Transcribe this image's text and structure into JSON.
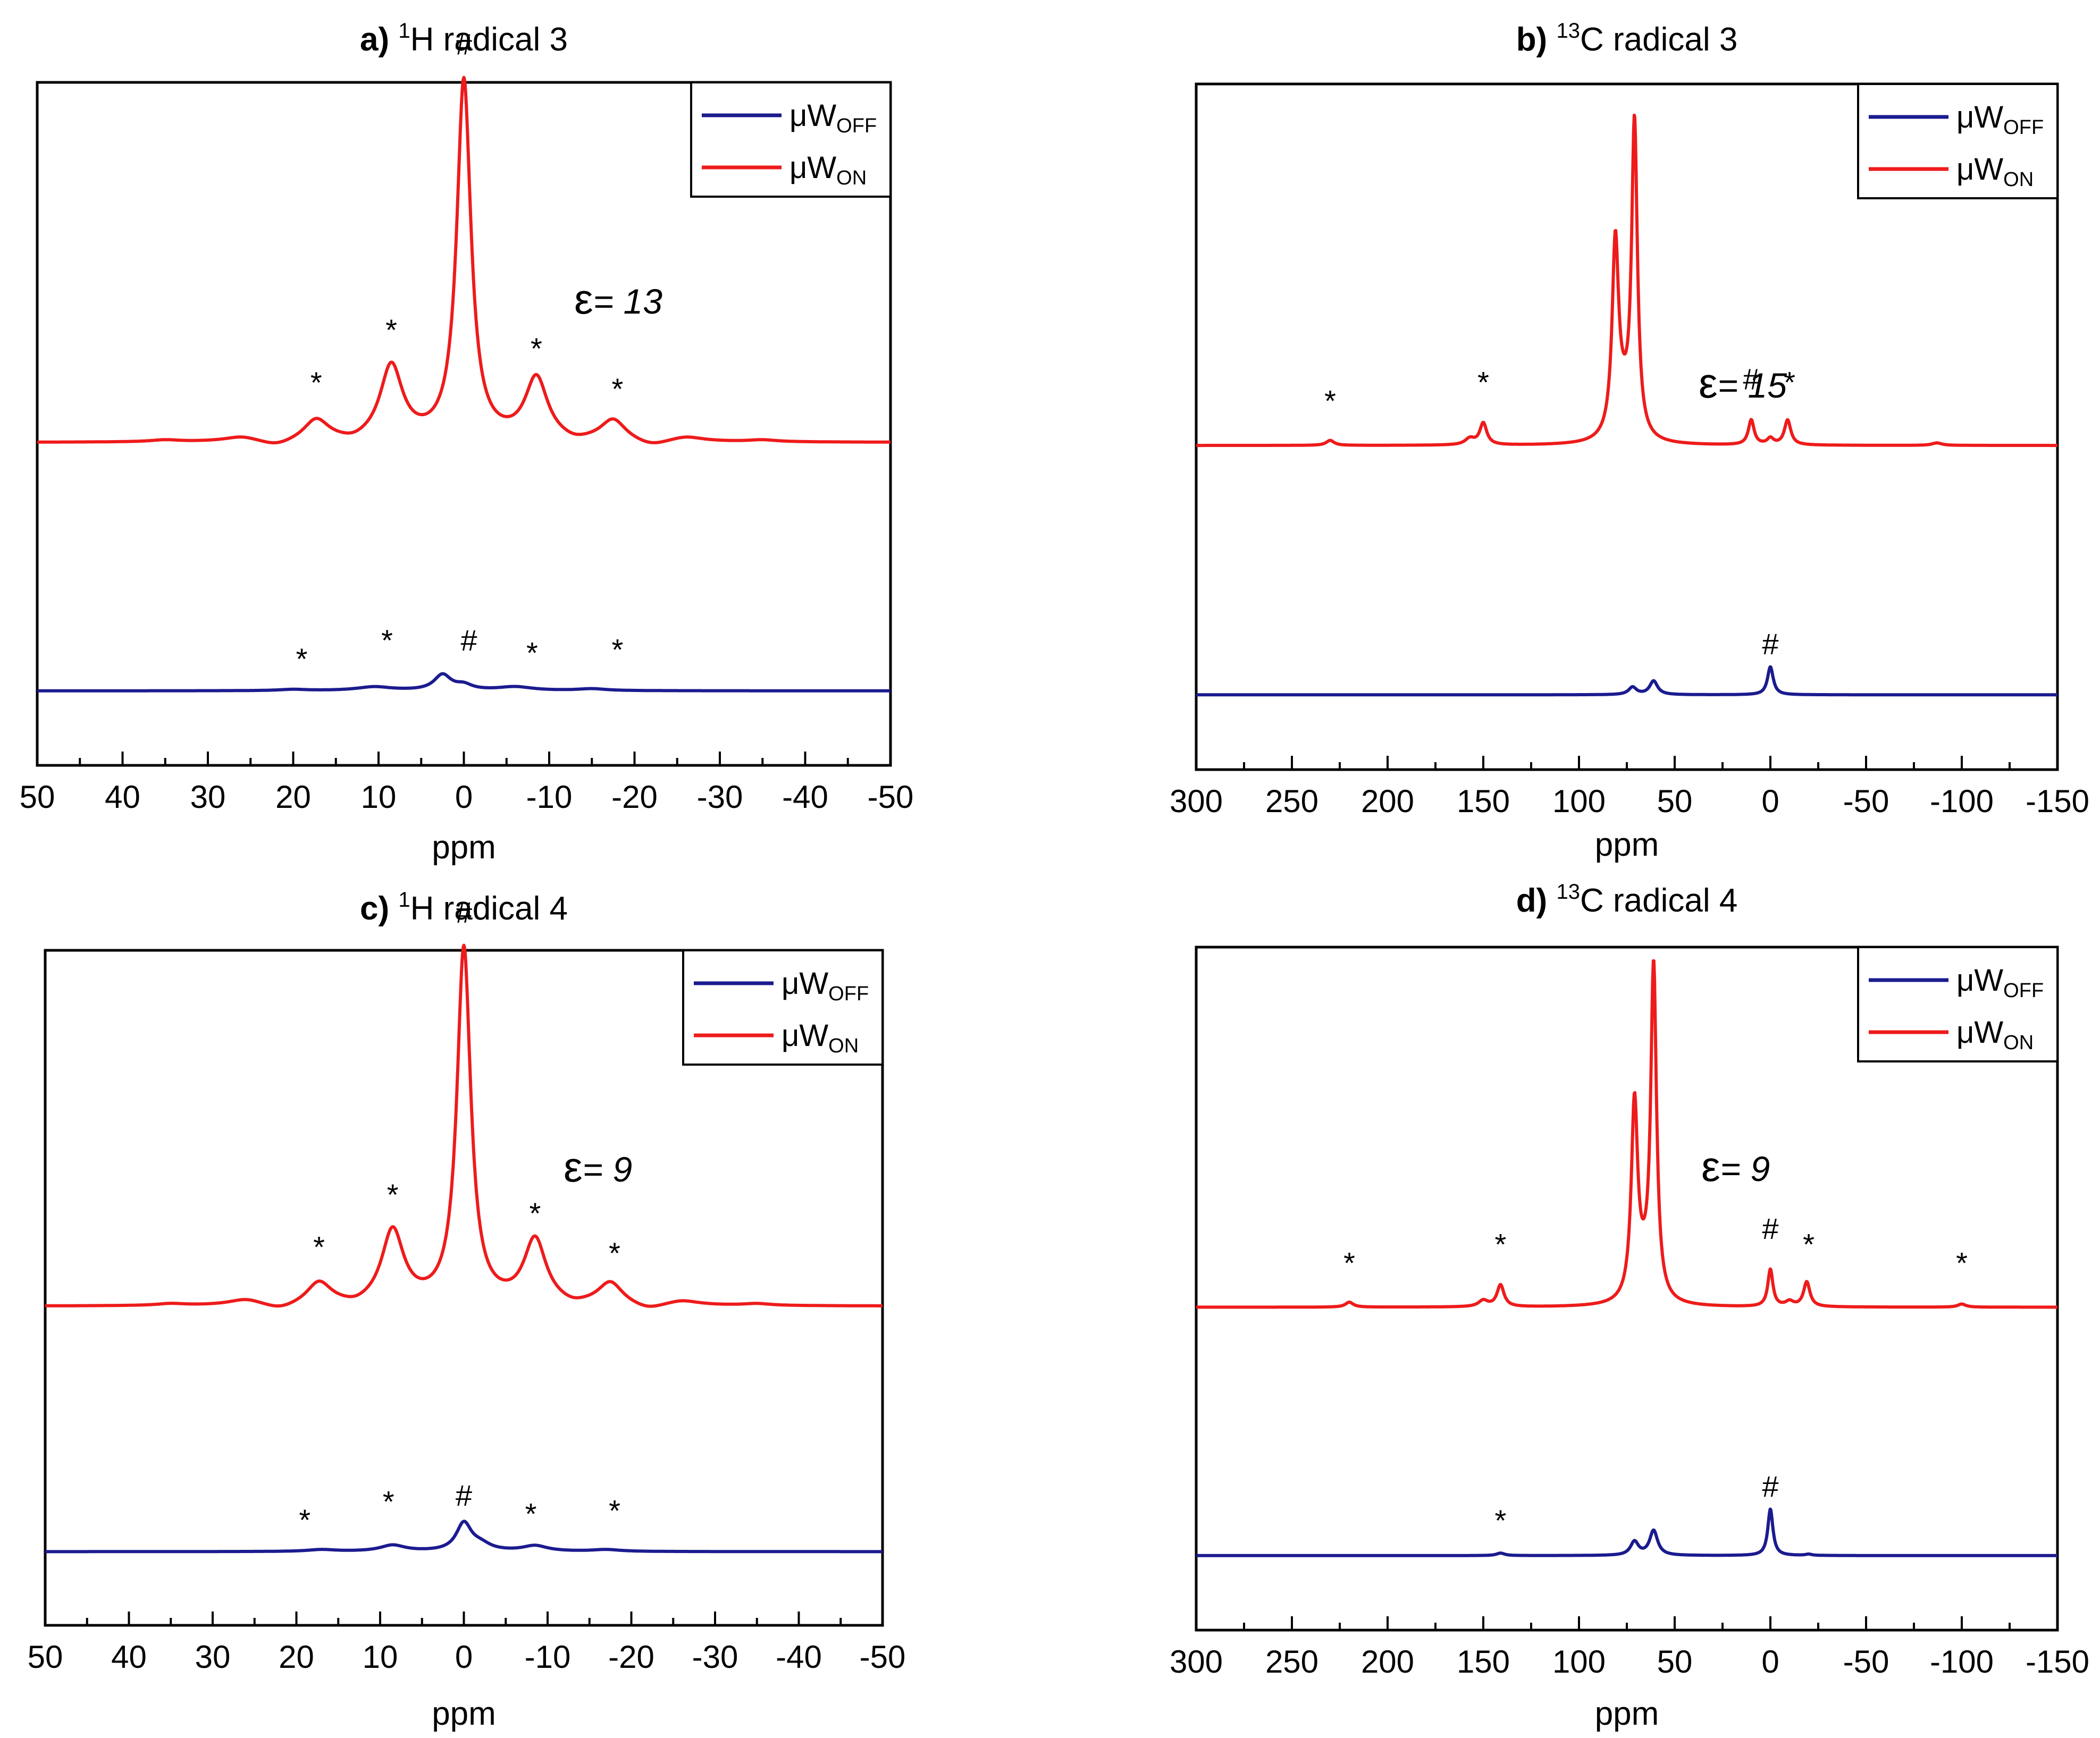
{
  "chart_data": [
    {
      "id": "a",
      "type": "line",
      "title_letter": "a)",
      "title_sup": "1",
      "title_nucleus": "H",
      "title_rest": " radical 3",
      "xlabel": "ppm",
      "ylabel": "",
      "xlim": [
        50,
        -50
      ],
      "xticks": [
        "50",
        "40",
        "30",
        "20",
        "10",
        "0",
        "-10",
        "-20",
        "-30",
        "-40",
        "-50"
      ],
      "xtick_values": [
        50,
        40,
        30,
        20,
        10,
        0,
        -10,
        -20,
        -30,
        -40,
        -50
      ],
      "ylim": [
        -0.1,
        1.0
      ],
      "legend": [
        {
          "name": "μW",
          "sub": "OFF",
          "color": "#1b1b8f"
        },
        {
          "name": "μW",
          "sub": "ON",
          "color": "#ee1b1b"
        }
      ],
      "enhancement_symbol": "ε",
      "enhancement_value": "= 13",
      "series": [
        {
          "name": "μW_ON",
          "color": "#ee1b1b",
          "baseline": 0.42,
          "peaks": [
            [
              0,
              0.58,
              1.0
            ],
            [
              8.5,
              0.12,
              1.6
            ],
            [
              -8.5,
              0.1,
              1.6
            ],
            [
              17.3,
              0.035,
              1.8
            ],
            [
              -17.5,
              0.035,
              1.8
            ],
            [
              26,
              0.008,
              2.5
            ],
            [
              -26,
              0.008,
              2.5
            ],
            [
              35,
              0.003,
              2
            ],
            [
              -35,
              0.003,
              2
            ]
          ],
          "dips": [
            [
              22,
              0.01,
              2.5
            ],
            [
              -22,
              0.01,
              2.5
            ],
            [
              13,
              0.006,
              1.8
            ],
            [
              -13,
              0.006,
              1.8
            ]
          ]
        },
        {
          "name": "μW_OFF",
          "color": "#1b1b8f",
          "baseline": 0.02,
          "peaks": [
            [
              2.5,
              0.025,
              1.2
            ],
            [
              0,
              0.008,
              1.2
            ],
            [
              10.5,
              0.006,
              2.5
            ],
            [
              -6,
              0.006,
              2.5
            ],
            [
              -15,
              0.003,
              2
            ],
            [
              20,
              0.002,
              2
            ]
          ],
          "dips": []
        }
      ],
      "annotations": [
        {
          "text": "#",
          "x": 0,
          "y": 1.045
        },
        {
          "text": "ε",
          "x": -12,
          "y": 0.86
        },
        {
          "text": "*",
          "x": 8.5,
          "y": 0.585
        },
        {
          "text": "*",
          "x": 17.3,
          "y": 0.5
        },
        {
          "text": "*",
          "x": -8.5,
          "y": 0.555
        },
        {
          "text": "*",
          "x": -18,
          "y": 0.49
        },
        {
          "text": "*",
          "x": 9,
          "y": 0.085
        },
        {
          "text": "*",
          "x": 19,
          "y": 0.055
        },
        {
          "text": "#",
          "x": -0.6,
          "y": 0.085
        },
        {
          "text": "*",
          "x": -8,
          "y": 0.065
        },
        {
          "text": "*",
          "x": -18,
          "y": 0.07
        }
      ]
    },
    {
      "id": "b",
      "type": "line",
      "title_letter": "b)",
      "title_sup": "13",
      "title_nucleus": "C",
      "title_rest": " radical 3",
      "xlabel": "ppm",
      "ylabel": "",
      "xlim": [
        300,
        -150
      ],
      "xticks": [
        "300",
        "250",
        "200",
        "150",
        "100",
        "50",
        "0",
        "-50",
        "-100",
        "-150"
      ],
      "xtick_values": [
        300,
        250,
        200,
        150,
        100,
        50,
        0,
        -50,
        -100,
        -150
      ],
      "ylim": [
        -0.1,
        1.0
      ],
      "legend": [
        {
          "name": "μW",
          "sub": "OFF",
          "color": "#1b1b8f"
        },
        {
          "name": "μW",
          "sub": "ON",
          "color": "#ee1b1b"
        }
      ],
      "enhancement_symbol": "ε",
      "enhancement_value": "= 15",
      "series": [
        {
          "name": "μW_ON",
          "color": "#ee1b1b",
          "baseline": 0.42,
          "peaks": [
            [
              71,
              0.5,
              1.8
            ],
            [
              81,
              0.3,
              2.0
            ],
            [
              77,
              0.05,
              5
            ],
            [
              10,
              0.04,
              1.8
            ],
            [
              -9,
              0.04,
              2.0
            ],
            [
              0,
              0.01,
              2
            ],
            [
              150,
              0.035,
              2.2
            ],
            [
              157,
              0.01,
              3
            ],
            [
              230,
              0.008,
              2.5
            ],
            [
              -87,
              0.004,
              3
            ]
          ],
          "dips": []
        },
        {
          "name": "μW_OFF",
          "color": "#1b1b8f",
          "baseline": 0.02,
          "peaks": [
            [
              0,
              0.045,
              1.8
            ],
            [
              61,
              0.022,
              2.5
            ],
            [
              72,
              0.012,
              2.5
            ]
          ],
          "dips": []
        }
      ],
      "annotations": [
        {
          "text": "*",
          "x": 230,
          "y": 0.475
        },
        {
          "text": "*",
          "x": 150,
          "y": 0.505
        },
        {
          "text": "#",
          "x": 10,
          "y": 0.51
        },
        {
          "text": "*",
          "x": -10,
          "y": 0.505
        },
        {
          "text": "#",
          "x": 0,
          "y": 0.085
        }
      ]
    },
    {
      "id": "c",
      "type": "line",
      "title_letter": "c)",
      "title_sup": "1",
      "title_nucleus": "H",
      "title_rest": " radical 4",
      "xlabel": "ppm",
      "ylabel": "",
      "xlim": [
        50,
        -50
      ],
      "xticks": [
        "50",
        "40",
        "30",
        "20",
        "10",
        "0",
        "-10",
        "-20",
        "-30",
        "-40",
        "-50"
      ],
      "xtick_values": [
        50,
        40,
        30,
        20,
        10,
        0,
        -10,
        -20,
        -30,
        -40,
        -50
      ],
      "ylim": [
        -0.1,
        1.0
      ],
      "legend": [
        {
          "name": "μW",
          "sub": "OFF",
          "color": "#1b1b8f"
        },
        {
          "name": "μW",
          "sub": "ON",
          "color": "#ee1b1b"
        }
      ],
      "enhancement_symbol": "ε",
      "enhancement_value": "= 9",
      "series": [
        {
          "name": "μW_ON",
          "color": "#ee1b1b",
          "baseline": 0.42,
          "peaks": [
            [
              0,
              0.58,
              1.0
            ],
            [
              8.5,
              0.12,
              1.6
            ],
            [
              -8.5,
              0.105,
              1.6
            ],
            [
              17.3,
              0.037,
              1.8
            ],
            [
              -17.5,
              0.037,
              1.8
            ],
            [
              26,
              0.01,
              2.5
            ],
            [
              -26,
              0.008,
              2.5
            ],
            [
              35,
              0.003,
              2
            ],
            [
              -35,
              0.003,
              2
            ]
          ],
          "dips": [
            [
              22,
              0.01,
              2.5
            ],
            [
              -22,
              0.01,
              2.5
            ],
            [
              13,
              0.006,
              1.8
            ],
            [
              -13,
              0.006,
              1.8
            ]
          ]
        },
        {
          "name": "μW_OFF",
          "color": "#1b1b8f",
          "baseline": 0.02,
          "peaks": [
            [
              0,
              0.045,
              1.1
            ],
            [
              -2,
              0.01,
              1.5
            ],
            [
              8.5,
              0.01,
              1.8
            ],
            [
              -8.5,
              0.009,
              1.8
            ],
            [
              17,
              0.003,
              2
            ],
            [
              -17,
              0.003,
              2
            ]
          ],
          "dips": []
        }
      ],
      "annotations": [
        {
          "text": "#",
          "x": 0,
          "y": 1.045
        },
        {
          "text": "ε",
          "x": -12,
          "y": 0.86
        },
        {
          "text": "*",
          "x": 8.5,
          "y": 0.585
        },
        {
          "text": "*",
          "x": 17.3,
          "y": 0.5
        },
        {
          "text": "*",
          "x": -8.5,
          "y": 0.555
        },
        {
          "text": "*",
          "x": -18,
          "y": 0.49
        },
        {
          "text": "*",
          "x": 9,
          "y": 0.085
        },
        {
          "text": "*",
          "x": 19,
          "y": 0.055
        },
        {
          "text": "#",
          "x": 0,
          "y": 0.095
        },
        {
          "text": "*",
          "x": -8,
          "y": 0.065
        },
        {
          "text": "*",
          "x": -18,
          "y": 0.07
        }
      ]
    },
    {
      "id": "d",
      "type": "line",
      "title_letter": "d)",
      "title_sup": "13",
      "title_nucleus": "C",
      "title_rest": " radical 4",
      "xlabel": "ppm",
      "ylabel": "",
      "xlim": [
        300,
        -150
      ],
      "xticks": [
        "300",
        "250",
        "200",
        "150",
        "100",
        "50",
        "0",
        "-50",
        "-100",
        "-150"
      ],
      "xtick_values": [
        300,
        250,
        200,
        150,
        100,
        50,
        0,
        -50,
        -100,
        -150
      ],
      "ylim": [
        -0.1,
        1.0
      ],
      "legend": [
        {
          "name": "μW",
          "sub": "OFF",
          "color": "#1b1b8f"
        },
        {
          "name": "μW",
          "sub": "ON",
          "color": "#ee1b1b"
        }
      ],
      "enhancement_symbol": "ε",
      "enhancement_value": "= 9",
      "series": [
        {
          "name": "μW_ON",
          "color": "#ee1b1b",
          "baseline": 0.42,
          "peaks": [
            [
              61,
              0.53,
              1.8
            ],
            [
              71,
              0.31,
              2.0
            ],
            [
              66,
              0.04,
              5
            ],
            [
              0,
              0.06,
              1.6
            ],
            [
              -19,
              0.04,
              2.0
            ],
            [
              -10,
              0.008,
              2.5
            ],
            [
              141,
              0.035,
              2.2
            ],
            [
              150,
              0.01,
              3
            ],
            [
              220,
              0.008,
              2.5
            ],
            [
              -100,
              0.005,
              2.5
            ]
          ],
          "dips": []
        },
        {
          "name": "μW_OFF",
          "color": "#1b1b8f",
          "baseline": 0.02,
          "peaks": [
            [
              0,
              0.075,
              1.6
            ],
            [
              61,
              0.04,
              2.5
            ],
            [
              71,
              0.022,
              2.5
            ],
            [
              141,
              0.004,
              2.5
            ],
            [
              -20,
              0.002,
              2
            ]
          ],
          "dips": []
        }
      ],
      "annotations": [
        {
          "text": "*",
          "x": 220,
          "y": 0.475
        },
        {
          "text": "*",
          "x": 141,
          "y": 0.505
        },
        {
          "text": "#",
          "x": 0,
          "y": 0.53
        },
        {
          "text": "*",
          "x": -20,
          "y": 0.505
        },
        {
          "text": "*",
          "x": -100,
          "y": 0.475
        },
        {
          "text": "*",
          "x": 141,
          "y": 0.06
        },
        {
          "text": "#",
          "x": 0,
          "y": 0.115
        }
      ]
    }
  ]
}
